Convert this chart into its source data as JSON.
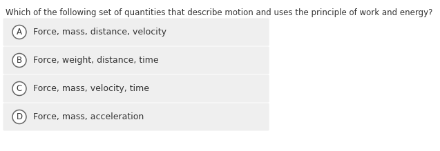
{
  "question": "Which of the following set of quantities that describe motion and uses the principle of work and energy?",
  "options": [
    {
      "label": "A",
      "text": "Force, mass, distance, velocity"
    },
    {
      "label": "B",
      "text": "Force, weight, distance, time"
    },
    {
      "label": "C",
      "text": "Force, mass, velocity, time"
    },
    {
      "label": "D",
      "text": "Force, mass, acceleration"
    }
  ],
  "background_color": "#ffffff",
  "question_color": "#333333",
  "option_text_color": "#333333",
  "circle_edge_color": "#666666",
  "circle_face_color": "#ffffff",
  "option_bg_color": "#efefef",
  "question_fontsize": 8.5,
  "option_fontsize": 9.0,
  "label_fontsize": 8.5,
  "fig_width": 6.37,
  "fig_height": 2.19,
  "dpi": 100
}
